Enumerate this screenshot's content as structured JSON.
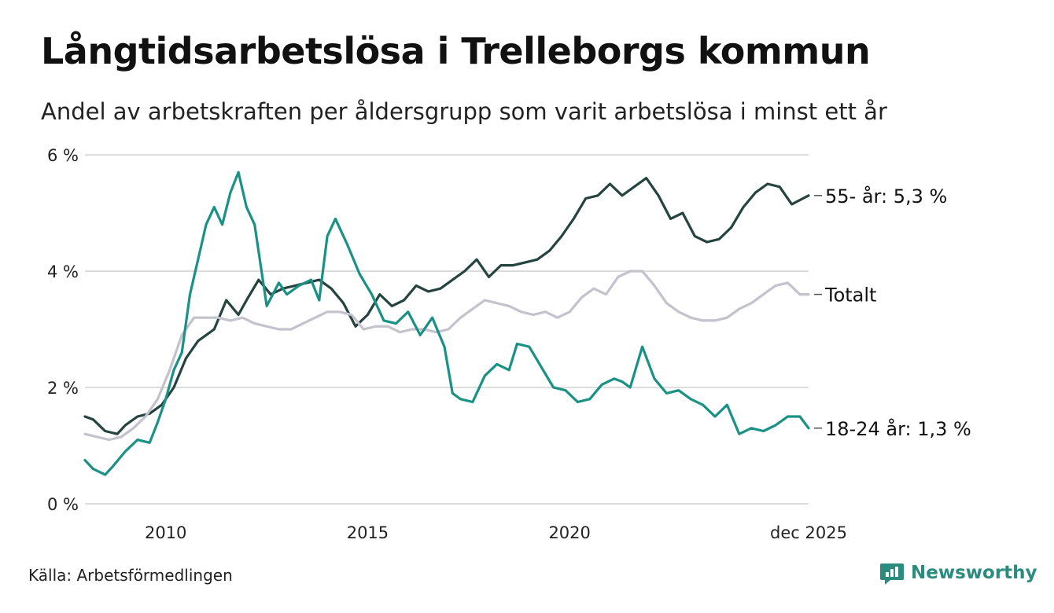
{
  "header": {
    "title": "Långtidsarbetslösa i Trelleborgs kommun",
    "subtitle": "Andel av arbetskraften per åldersgrupp som varit arbetslösa i minst ett år"
  },
  "footer": {
    "source": "Källa: Arbetsförmedlingen",
    "brand": "Newsworthy"
  },
  "colors": {
    "age55": "#25433f",
    "age18_24": "#1a9185",
    "total": "#c4c2cd",
    "grid": "#dddddd",
    "brand": "#2a8c7e"
  },
  "chart_data": {
    "type": "line",
    "title": "Långtidsarbetslösa i Trelleborgs kommun",
    "xlabel": "",
    "ylabel": "",
    "xlim": [
      2008.0,
      2025.917
    ],
    "ylim": [
      0,
      6
    ],
    "y_ticks": [
      0,
      2,
      4,
      6
    ],
    "y_tick_labels": [
      "0 %",
      "2 %",
      "4 %",
      "6 %"
    ],
    "x_ticks": [
      2010,
      2015,
      2020,
      2025.917
    ],
    "x_tick_labels": [
      "2010",
      "2015",
      "2020",
      "dec 2025"
    ],
    "grid": true,
    "series": [
      {
        "key": "age55",
        "name": "55- år",
        "end_label": "55- år: 5,3 %",
        "x": [
          2008.0,
          2008.2,
          2008.5,
          2008.8,
          2009.0,
          2009.3,
          2009.6,
          2009.9,
          2010.2,
          2010.5,
          2010.8,
          2011.0,
          2011.2,
          2011.5,
          2011.8,
          2012.0,
          2012.3,
          2012.6,
          2012.9,
          2013.2,
          2013.5,
          2013.8,
          2014.1,
          2014.4,
          2014.7,
          2015.0,
          2015.3,
          2015.6,
          2015.9,
          2016.2,
          2016.5,
          2016.8,
          2017.1,
          2017.4,
          2017.7,
          2018.0,
          2018.3,
          2018.6,
          2018.9,
          2019.2,
          2019.5,
          2019.8,
          2020.1,
          2020.4,
          2020.7,
          2021.0,
          2021.3,
          2021.6,
          2021.9,
          2022.2,
          2022.5,
          2022.8,
          2023.1,
          2023.4,
          2023.7,
          2024.0,
          2024.3,
          2024.6,
          2024.9,
          2025.2,
          2025.5,
          2025.917
        ],
        "values": [
          1.5,
          1.45,
          1.25,
          1.2,
          1.35,
          1.5,
          1.55,
          1.7,
          2.0,
          2.5,
          2.8,
          2.9,
          3.0,
          3.5,
          3.25,
          3.5,
          3.85,
          3.6,
          3.7,
          3.75,
          3.8,
          3.85,
          3.7,
          3.45,
          3.05,
          3.25,
          3.6,
          3.4,
          3.5,
          3.75,
          3.65,
          3.7,
          3.85,
          4.0,
          4.2,
          3.9,
          4.1,
          4.1,
          4.15,
          4.2,
          4.35,
          4.6,
          4.9,
          5.25,
          5.3,
          5.5,
          5.3,
          5.45,
          5.6,
          5.3,
          4.9,
          5.0,
          4.6,
          4.5,
          4.55,
          4.75,
          5.1,
          5.35,
          5.5,
          5.45,
          5.15,
          5.3
        ]
      },
      {
        "key": "total",
        "name": "Totalt",
        "end_label": "Totalt",
        "x": [
          2008.0,
          2008.3,
          2008.6,
          2008.9,
          2009.2,
          2009.5,
          2009.8,
          2010.1,
          2010.4,
          2010.7,
          2011.0,
          2011.3,
          2011.6,
          2011.9,
          2012.2,
          2012.5,
          2012.8,
          2013.1,
          2013.4,
          2013.7,
          2014.0,
          2014.3,
          2014.6,
          2014.9,
          2015.2,
          2015.5,
          2015.8,
          2016.1,
          2016.4,
          2016.7,
          2017.0,
          2017.3,
          2017.6,
          2017.9,
          2018.2,
          2018.5,
          2018.8,
          2019.1,
          2019.4,
          2019.7,
          2020.0,
          2020.3,
          2020.6,
          2020.9,
          2021.2,
          2021.5,
          2021.8,
          2022.1,
          2022.4,
          2022.7,
          2023.0,
          2023.3,
          2023.6,
          2023.9,
          2024.2,
          2024.5,
          2024.8,
          2025.1,
          2025.4,
          2025.7,
          2025.917
        ],
        "values": [
          1.2,
          1.15,
          1.1,
          1.15,
          1.3,
          1.5,
          1.8,
          2.3,
          2.9,
          3.2,
          3.2,
          3.2,
          3.15,
          3.2,
          3.1,
          3.05,
          3.0,
          3.0,
          3.1,
          3.2,
          3.3,
          3.3,
          3.25,
          3.0,
          3.05,
          3.05,
          2.95,
          3.0,
          3.0,
          2.95,
          3.0,
          3.2,
          3.35,
          3.5,
          3.45,
          3.4,
          3.3,
          3.25,
          3.3,
          3.2,
          3.3,
          3.55,
          3.7,
          3.6,
          3.9,
          4.0,
          4.0,
          3.75,
          3.45,
          3.3,
          3.2,
          3.15,
          3.15,
          3.2,
          3.35,
          3.45,
          3.6,
          3.75,
          3.8,
          3.6,
          3.6
        ]
      },
      {
        "key": "age18_24",
        "name": "18-24 år",
        "end_label": "18-24 år: 1,3 %",
        "x": [
          2008.0,
          2008.2,
          2008.5,
          2008.7,
          2009.0,
          2009.3,
          2009.6,
          2009.8,
          2010.0,
          2010.2,
          2010.4,
          2010.6,
          2010.8,
          2011.0,
          2011.2,
          2011.4,
          2011.6,
          2011.8,
          2012.0,
          2012.2,
          2012.5,
          2012.8,
          2013.0,
          2013.3,
          2013.6,
          2013.8,
          2014.0,
          2014.2,
          2014.5,
          2014.8,
          2015.1,
          2015.4,
          2015.7,
          2016.0,
          2016.3,
          2016.6,
          2016.9,
          2017.1,
          2017.3,
          2017.6,
          2017.9,
          2018.2,
          2018.5,
          2018.7,
          2019.0,
          2019.3,
          2019.6,
          2019.9,
          2020.2,
          2020.5,
          2020.8,
          2021.1,
          2021.3,
          2021.5,
          2021.8,
          2022.1,
          2022.4,
          2022.7,
          2023.0,
          2023.3,
          2023.6,
          2023.9,
          2024.2,
          2024.5,
          2024.8,
          2025.1,
          2025.4,
          2025.7,
          2025.917
        ],
        "values": [
          0.75,
          0.6,
          0.5,
          0.65,
          0.9,
          1.1,
          1.05,
          1.4,
          1.8,
          2.3,
          2.6,
          3.6,
          4.2,
          4.8,
          5.1,
          4.8,
          5.35,
          5.7,
          5.1,
          4.8,
          3.4,
          3.8,
          3.6,
          3.75,
          3.85,
          3.5,
          4.6,
          4.9,
          4.45,
          3.95,
          3.6,
          3.15,
          3.1,
          3.3,
          2.9,
          3.2,
          2.7,
          1.9,
          1.8,
          1.75,
          2.2,
          2.4,
          2.3,
          2.75,
          2.7,
          2.35,
          2.0,
          1.95,
          1.75,
          1.8,
          2.05,
          2.15,
          2.1,
          2.0,
          2.7,
          2.15,
          1.9,
          1.95,
          1.8,
          1.7,
          1.5,
          1.7,
          1.2,
          1.3,
          1.25,
          1.35,
          1.5,
          1.5,
          1.3
        ]
      }
    ]
  }
}
